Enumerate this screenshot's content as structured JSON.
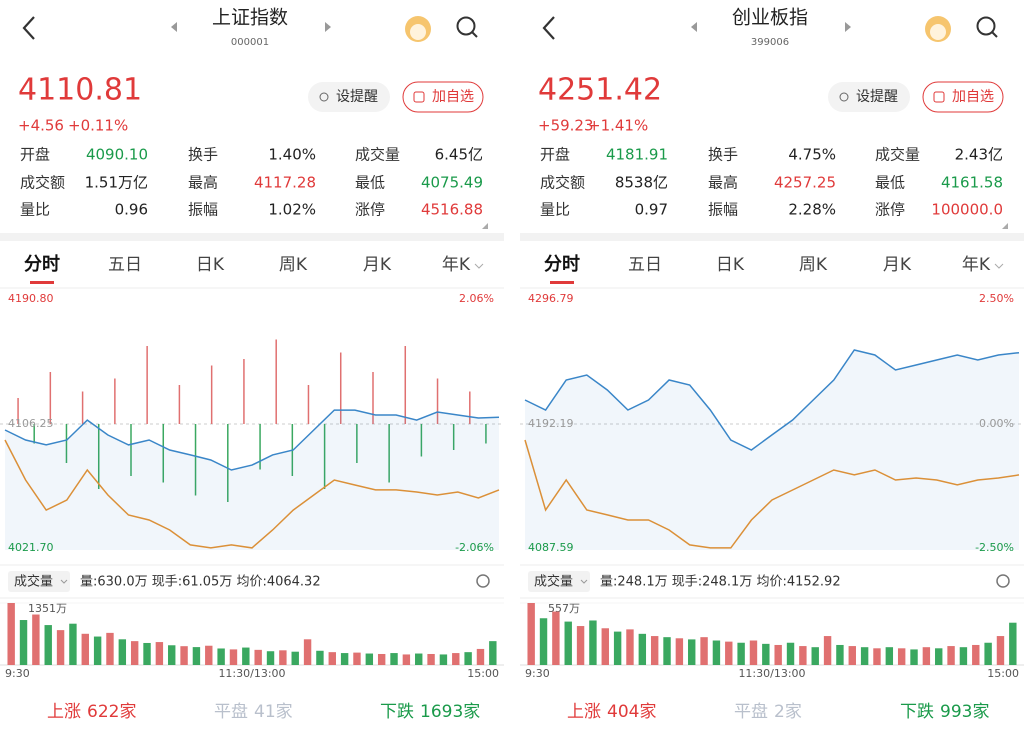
{
  "panels": [
    {
      "name": "上证指数",
      "code": "000001",
      "price": "4110.81",
      "change": "+4.56",
      "change_pct": "+0.11%",
      "buttons": [
        "设提醒",
        "加自选"
      ],
      "stats": [
        [
          {
            "label": "开盘",
            "value": "4090.10",
            "color": "#1a9a4a"
          },
          {
            "label": "换手",
            "value": "1.40%",
            "color": "#222"
          },
          {
            "label": "成交量",
            "value": "6.45亿",
            "color": "#222"
          }
        ],
        [
          {
            "label": "成交额",
            "value": "1.51万亿",
            "color": "#222"
          },
          {
            "label": "最高",
            "value": "4117.28",
            "color": "#e03a3a"
          },
          {
            "label": "最低",
            "value": "4075.49",
            "color": "#1a9a4a"
          }
        ],
        [
          {
            "label": "量比",
            "value": "0.96",
            "color": "#222"
          },
          {
            "label": "振幅",
            "value": "1.02%",
            "color": "#222"
          },
          {
            "label": "涨停",
            "value": "4516.88",
            "color": "#e03a3a"
          }
        ]
      ],
      "tabs": [
        "分时",
        "五日",
        "日K",
        "周K",
        "月K",
        "年K"
      ],
      "chart": {
        "ylim": [
          4021.7,
          4190.8
        ],
        "top_label": "4190.80",
        "mid_label": "4106.25",
        "bottom_label": "4021.70",
        "top_pct": "2.06%",
        "bottom_pct": "-2.06%",
        "price": [
          4102.2,
          4095.5,
          4092.2,
          4095.5,
          4108.9,
          4098.9,
          4092.2,
          4095.5,
          4088.8,
          4085.5,
          4082.1,
          4075.4,
          4078.7,
          4085.5,
          4088.8,
          4102.2,
          4115.6,
          4115.6,
          4112.3,
          4112.3,
          4108.9,
          4114.3,
          4112.3,
          4110.3,
          4110.8
        ],
        "avg": [
          4095.5,
          4068.7,
          4048.5,
          4055.2,
          4075.4,
          4058.6,
          4045.2,
          4041.8,
          4035.1,
          4025.1,
          4023.1,
          4025.1,
          4023.1,
          4035.1,
          4048.5,
          4058.6,
          4068.7,
          4065.3,
          4062.0,
          4062.0,
          4060.6,
          4058.6,
          4060.6,
          4056.6,
          4062.0
        ],
        "diff": [
          20,
          -15,
          40,
          -30,
          25,
          -50,
          35,
          -40,
          60,
          -45,
          30,
          -55,
          45,
          -60,
          50,
          -35,
          65,
          -40,
          30,
          -50,
          55,
          -30,
          40,
          -45,
          60,
          -25,
          35,
          -20,
          25,
          -15
        ]
      },
      "volume": {
        "label": "成交量",
        "info": "量:630.0万  现手:61.05万  均价:4064.32",
        "max": {
          "value": 1351,
          "label": "1351万"
        },
        "values": [
          1351,
          980,
          1100,
          870,
          760,
          900,
          680,
          620,
          700,
          560,
          520,
          480,
          500,
          430,
          410,
          390,
          420,
          360,
          340,
          380,
          330,
          300,
          320,
          290,
          560,
          310,
          280,
          260,
          270,
          250,
          240,
          260,
          230,
          250,
          240,
          230,
          260,
          280,
          350,
          520
        ],
        "times": [
          "9:30",
          "11:30/13:00",
          "15:00"
        ]
      },
      "breadth": [
        {
          "label": "上涨",
          "value": "622家",
          "color": "#e03a3a"
        },
        {
          "label": "平盘",
          "value": "41家",
          "color": "#b9c0cc"
        },
        {
          "label": "下跌",
          "value": "1693家",
          "color": "#1a9a4a"
        }
      ]
    },
    {
      "name": "创业板指",
      "code": "399006",
      "price": "4251.42",
      "change": "+59.23",
      "change_pct": "+1.41%",
      "buttons": [
        "设提醒",
        "加自选"
      ],
      "stats": [
        [
          {
            "label": "开盘",
            "value": "4181.91",
            "color": "#1a9a4a"
          },
          {
            "label": "换手",
            "value": "4.75%",
            "color": "#222"
          },
          {
            "label": "成交量",
            "value": "2.43亿",
            "color": "#222"
          }
        ],
        [
          {
            "label": "成交额",
            "value": "8538亿",
            "color": "#222"
          },
          {
            "label": "最高",
            "value": "4257.25",
            "color": "#e03a3a"
          },
          {
            "label": "最低",
            "value": "4161.58",
            "color": "#1a9a4a"
          }
        ],
        [
          {
            "label": "量比",
            "value": "0.97",
            "color": "#222"
          },
          {
            "label": "振幅",
            "value": "2.28%",
            "color": "#222"
          },
          {
            "label": "涨停",
            "value": "100000.0",
            "color": "#e03a3a"
          }
        ]
      ],
      "tabs": [
        "分时",
        "五日",
        "日K",
        "周K",
        "月K",
        "年K"
      ],
      "chart": {
        "ylim": [
          4087.59,
          4296.79
        ],
        "top_label": "4296.79",
        "mid_label": "4192.19",
        "bottom_label": "4087.59",
        "top_pct": "2.50%",
        "mid_pct": "0.00%",
        "bottom_pct": "-2.50%",
        "price": [
          4212.1,
          4203.8,
          4228.7,
          4232.9,
          4220.4,
          4203.8,
          4212.1,
          4228.7,
          4224.6,
          4203.8,
          4178.9,
          4170.6,
          4183.1,
          4195.5,
          4212.1,
          4228.7,
          4253.6,
          4249.5,
          4237.0,
          4241.2,
          4245.3,
          4249.5,
          4245.3,
          4249.5,
          4251.4
        ],
        "avg": [
          4178.9,
          4120.8,
          4145.7,
          4120.8,
          4116.7,
          4112.5,
          4112.5,
          4104.2,
          4091.8,
          4089.3,
          4089.3,
          4112.5,
          4129.1,
          4137.4,
          4145.7,
          4154.0,
          4149.9,
          4154.0,
          4145.7,
          4147.4,
          4145.7,
          4141.6,
          4145.7,
          4147.4,
          4149.9
        ]
      },
      "volume": {
        "label": "成交量",
        "info": "量:248.1万  现手:248.1万  均价:4152.92",
        "max": {
          "value": 557,
          "label": "557万"
        },
        "values": [
          557,
          420,
          480,
          390,
          350,
          400,
          330,
          300,
          320,
          280,
          260,
          250,
          240,
          230,
          250,
          220,
          210,
          200,
          220,
          190,
          180,
          200,
          170,
          160,
          260,
          180,
          170,
          160,
          150,
          160,
          150,
          140,
          160,
          150,
          170,
          160,
          180,
          200,
          260,
          380
        ],
        "times": [
          "9:30",
          "11:30/13:00",
          "15:00"
        ]
      },
      "breadth": [
        {
          "label": "上涨",
          "value": "404家",
          "color": "#e03a3a"
        },
        {
          "label": "平盘",
          "value": "2家",
          "color": "#b9c0cc"
        },
        {
          "label": "下跌",
          "value": "993家",
          "color": "#1a9a4a"
        }
      ]
    }
  ]
}
